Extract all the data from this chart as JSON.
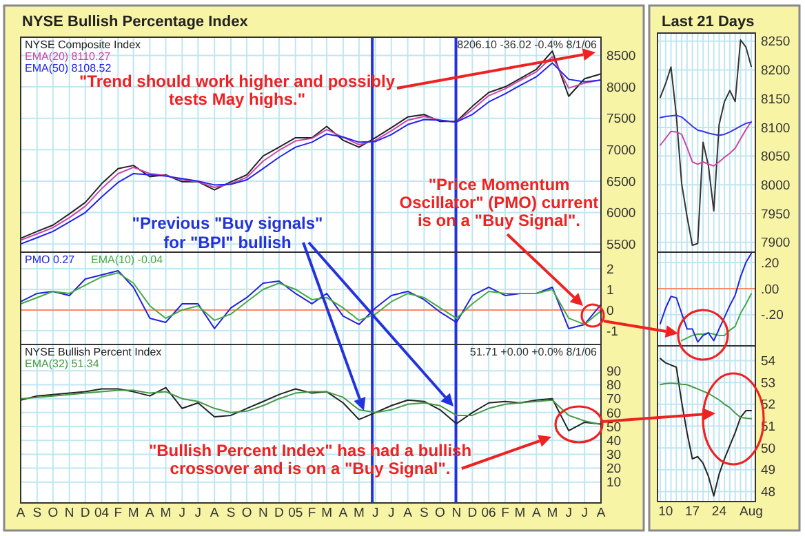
{
  "chart_data": [
    {
      "type": "line",
      "title": "NYSE Bullish Percentage Index",
      "x": [
        "2003-08",
        "2003-09",
        "2003-10",
        "2003-11",
        "2003-12",
        "2004-01",
        "2004-02",
        "2004-03",
        "2004-04",
        "2004-05",
        "2004-06",
        "2004-07",
        "2004-08",
        "2004-09",
        "2004-10",
        "2004-11",
        "2004-12",
        "2005-01",
        "2005-02",
        "2005-03",
        "2005-04",
        "2005-05",
        "2005-06",
        "2005-07",
        "2005-08",
        "2005-09",
        "2005-10",
        "2005-11",
        "2005-12",
        "2006-01",
        "2006-02",
        "2006-03",
        "2006-04",
        "2006-05",
        "2006-06",
        "2006-07",
        "2006-08"
      ],
      "series": [
        {
          "name": "NYSE Composite Index",
          "color": "#222222",
          "values": [
            5590,
            5700,
            5800,
            5980,
            6160,
            6460,
            6700,
            6750,
            6570,
            6600,
            6490,
            6490,
            6360,
            6490,
            6600,
            6900,
            7040,
            7190,
            7190,
            7370,
            7150,
            7040,
            7190,
            7350,
            7520,
            7560,
            7450,
            7450,
            7690,
            7910,
            8000,
            8130,
            8280,
            8570,
            7850,
            8130,
            8206
          ]
        },
        {
          "name": "EMA(20) 8110.27",
          "color": "#cc44aa",
          "values": [
            5560,
            5660,
            5760,
            5920,
            6100,
            6380,
            6620,
            6720,
            6620,
            6590,
            6520,
            6490,
            6400,
            6460,
            6560,
            6820,
            6990,
            7140,
            7180,
            7320,
            7200,
            7080,
            7150,
            7300,
            7470,
            7530,
            7470,
            7440,
            7640,
            7860,
            7970,
            8100,
            8240,
            8480,
            7980,
            8060,
            8110
          ]
        },
        {
          "name": "EMA(50) 8108.52",
          "color": "#2222ee",
          "values": [
            5500,
            5600,
            5700,
            5850,
            6000,
            6250,
            6480,
            6620,
            6600,
            6580,
            6540,
            6500,
            6440,
            6450,
            6520,
            6700,
            6880,
            7040,
            7120,
            7250,
            7200,
            7120,
            7130,
            7240,
            7400,
            7480,
            7470,
            7440,
            7560,
            7760,
            7890,
            8020,
            8160,
            8380,
            8120,
            8080,
            8109
          ]
        }
      ],
      "xlim": [
        "2003-08",
        "2006-08"
      ],
      "xticks": [
        {
          "value": "2003-08",
          "label": null
        },
        {
          "value": "2003-09",
          "label": null
        },
        {
          "value": "2003-10",
          "label": null
        },
        {
          "value": "2003-11",
          "label": null
        },
        {
          "value": "2003-12",
          "label": null
        },
        {
          "value": "2004-01",
          "label": null
        },
        {
          "value": "2004-02",
          "label": null
        },
        {
          "value": "2004-03",
          "label": null
        },
        {
          "value": "2004-04",
          "label": null
        },
        {
          "value": "2004-05",
          "label": null
        },
        {
          "value": "2004-06",
          "label": null
        },
        {
          "value": "2004-07",
          "label": null
        },
        {
          "value": "2004-08",
          "label": null
        },
        {
          "value": "2004-09",
          "label": null
        },
        {
          "value": "2004-10",
          "label": null
        },
        {
          "value": "2004-11",
          "label": null
        },
        {
          "value": "2004-12",
          "label": null
        },
        {
          "value": "2005-01",
          "label": null
        },
        {
          "value": "2005-02",
          "label": null
        },
        {
          "value": "2005-03",
          "label": null
        },
        {
          "value": "2005-04",
          "label": null
        },
        {
          "value": "2005-05",
          "label": null
        },
        {
          "value": "2005-06",
          "label": null
        },
        {
          "value": "2005-07",
          "label": null
        },
        {
          "value": "2005-08",
          "label": null
        },
        {
          "value": "2005-09",
          "label": null
        },
        {
          "value": "2005-10",
          "label": null
        },
        {
          "value": "2005-11",
          "label": null
        },
        {
          "value": "2005-12",
          "label": null
        },
        {
          "value": "2006-01",
          "label": null
        },
        {
          "value": "2006-02",
          "label": null
        },
        {
          "value": "2006-03",
          "label": null
        },
        {
          "value": "2006-04",
          "label": null
        },
        {
          "value": "2006-05",
          "label": null
        },
        {
          "value": "2006-06",
          "label": null
        },
        {
          "value": "2006-07",
          "label": null
        },
        {
          "value": "2006-08",
          "label": null
        }
      ],
      "ylim": [
        5370,
        8790
      ],
      "yticks": [
        5500,
        6000,
        6500,
        7000,
        7500,
        8000,
        8500
      ],
      "grid": true,
      "legend": "top left",
      "tick_labels": "y",
      "ref_lines": [
        {
          "axis": "x",
          "value": "2005-05-26",
          "color": "#2233dd"
        },
        {
          "axis": "x",
          "value": "2005-10-31",
          "color": "#2233dd"
        }
      ],
      "annotations": [
        "8206.10  -36.02  -0.4%  8/1/06",
        "\"Trend should work higher and possibly\ntests May highs.\"",
        "\"Price Momentum\nOscillator\" (PMO) current\nis on a \"Buy Signal\".",
        "\"Previous \"Buy signals\"\nfor \"BPI\" bullish\ncrossovers.\""
      ]
    },
    {
      "type": "line",
      "x": [
        "2003-08",
        "2003-09",
        "2003-10",
        "2003-11",
        "2003-12",
        "2004-01",
        "2004-02",
        "2004-03",
        "2004-04",
        "2004-05",
        "2004-06",
        "2004-07",
        "2004-08",
        "2004-09",
        "2004-10",
        "2004-11",
        "2004-12",
        "2005-01",
        "2005-02",
        "2005-03",
        "2005-04",
        "2005-05",
        "2005-06",
        "2005-07",
        "2005-08",
        "2005-09",
        "2005-10",
        "2005-11",
        "2005-12",
        "2006-01",
        "2006-02",
        "2006-03",
        "2006-04",
        "2006-05",
        "2006-06",
        "2006-07",
        "2006-08"
      ],
      "series": [
        {
          "name": "PMO  0.27",
          "color": "#2222dd",
          "values": [
            0.4,
            0.8,
            0.9,
            0.7,
            1.5,
            1.7,
            1.9,
            1.1,
            -0.4,
            -0.6,
            0.3,
            0.3,
            -0.9,
            0.1,
            0.6,
            1.3,
            1.4,
            0.8,
            0.3,
            0.8,
            -0.3,
            -0.7,
            0.1,
            0.7,
            0.9,
            0.5,
            -0.1,
            -0.6,
            0.7,
            1.1,
            0.7,
            0.8,
            0.8,
            1.1,
            -0.9,
            -0.7,
            0.27
          ]
        },
        {
          "name": "EMA(10)  -0.04",
          "color": "#44aa44",
          "values": [
            0.3,
            0.6,
            0.9,
            0.8,
            1.2,
            1.6,
            1.8,
            1.3,
            0.2,
            -0.4,
            0.0,
            0.2,
            -0.5,
            -0.2,
            0.4,
            1.0,
            1.3,
            1.0,
            0.5,
            0.6,
            0.1,
            -0.5,
            -0.2,
            0.4,
            0.8,
            0.6,
            0.1,
            -0.4,
            0.3,
            0.9,
            0.8,
            0.8,
            0.8,
            1.0,
            -0.4,
            -0.7,
            -0.04
          ]
        }
      ],
      "xlim": [
        "2003-08",
        "2006-08"
      ],
      "xticks": [
        {
          "value": "2003-08",
          "label": null
        },
        {
          "value": "2003-09",
          "label": null
        },
        {
          "value": "2003-10",
          "label": null
        },
        {
          "value": "2003-11",
          "label": null
        },
        {
          "value": "2003-12",
          "label": null
        },
        {
          "value": "2004-01",
          "label": null
        },
        {
          "value": "2004-02",
          "label": null
        },
        {
          "value": "2004-03",
          "label": null
        },
        {
          "value": "2004-04",
          "label": null
        },
        {
          "value": "2004-05",
          "label": null
        },
        {
          "value": "2004-06",
          "label": null
        },
        {
          "value": "2004-07",
          "label": null
        },
        {
          "value": "2004-08",
          "label": null
        },
        {
          "value": "2004-09",
          "label": null
        },
        {
          "value": "2004-10",
          "label": null
        },
        {
          "value": "2004-11",
          "label": null
        },
        {
          "value": "2004-12",
          "label": null
        },
        {
          "value": "2005-01",
          "label": null
        },
        {
          "value": "2005-02",
          "label": null
        },
        {
          "value": "2005-03",
          "label": null
        },
        {
          "value": "2005-04",
          "label": null
        },
        {
          "value": "2005-05",
          "label": null
        },
        {
          "value": "2005-06",
          "label": null
        },
        {
          "value": "2005-07",
          "label": null
        },
        {
          "value": "2005-08",
          "label": null
        },
        {
          "value": "2005-09",
          "label": null
        },
        {
          "value": "2005-10",
          "label": null
        },
        {
          "value": "2005-11",
          "label": null
        },
        {
          "value": "2005-12",
          "label": null
        },
        {
          "value": "2006-01",
          "label": null
        },
        {
          "value": "2006-02",
          "label": null
        },
        {
          "value": "2006-03",
          "label": null
        },
        {
          "value": "2006-04",
          "label": null
        },
        {
          "value": "2006-05",
          "label": null
        },
        {
          "value": "2006-06",
          "label": null
        },
        {
          "value": "2006-07",
          "label": null
        },
        {
          "value": "2006-08",
          "label": null
        }
      ],
      "ylim": [
        -1.67,
        2.8
      ],
      "yticks": [
        -1,
        0,
        1,
        2
      ],
      "grid": true,
      "legend": "top left",
      "tick_labels": "y",
      "ref_lines": [
        {
          "axis": "y",
          "value": 0,
          "color": "#ff8866"
        },
        {
          "axis": "x",
          "value": "2005-05-26",
          "color": "#2233dd"
        },
        {
          "axis": "x",
          "value": "2005-10-31",
          "color": "#2233dd"
        }
      ]
    },
    {
      "type": "line",
      "x": [
        "2003-08",
        "2003-09",
        "2003-10",
        "2003-11",
        "2003-12",
        "2004-01",
        "2004-02",
        "2004-03",
        "2004-04",
        "2004-05",
        "2004-06",
        "2004-07",
        "2004-08",
        "2004-09",
        "2004-10",
        "2004-11",
        "2004-12",
        "2005-01",
        "2005-02",
        "2005-03",
        "2005-04",
        "2005-05",
        "2005-06",
        "2005-07",
        "2005-08",
        "2005-09",
        "2005-10",
        "2005-11",
        "2005-12",
        "2006-01",
        "2006-02",
        "2006-03",
        "2006-04",
        "2006-05",
        "2006-06",
        "2006-07",
        "2006-08"
      ],
      "series": [
        {
          "name": "NYSE Bullish Percent Index",
          "color": "#222222",
          "values": [
            69,
            72,
            73,
            74,
            75,
            77,
            77,
            75,
            72,
            78,
            63,
            67,
            57,
            58,
            63,
            68,
            73,
            77,
            74,
            75,
            67,
            55,
            60,
            65,
            69,
            68,
            62,
            52,
            60,
            67,
            68,
            67,
            69,
            70,
            47,
            53,
            51.71
          ]
        },
        {
          "name": "EMA(32) 51.34",
          "color": "#449944",
          "values": [
            70,
            71,
            72,
            73,
            74,
            75,
            76,
            76,
            74,
            75,
            70,
            68,
            63,
            60,
            61,
            65,
            70,
            74,
            75,
            75,
            71,
            62,
            60,
            62,
            66,
            67,
            65,
            58,
            58,
            63,
            66,
            67,
            68,
            69,
            58,
            54,
            51.34
          ]
        }
      ],
      "xlim": [
        "2003-08",
        "2006-08"
      ],
      "xticks": [
        {
          "value": "2003-08",
          "label": "A"
        },
        {
          "value": "2003-09",
          "label": "S"
        },
        {
          "value": "2003-10",
          "label": "O"
        },
        {
          "value": "2003-11",
          "label": "N"
        },
        {
          "value": "2003-12",
          "label": "D"
        },
        {
          "value": "2004-01",
          "label": "04"
        },
        {
          "value": "2004-02",
          "label": "F"
        },
        {
          "value": "2004-03",
          "label": "M"
        },
        {
          "value": "2004-04",
          "label": "A"
        },
        {
          "value": "2004-05",
          "label": "M"
        },
        {
          "value": "2004-06",
          "label": "J"
        },
        {
          "value": "2004-07",
          "label": "J"
        },
        {
          "value": "2004-08",
          "label": "A"
        },
        {
          "value": "2004-09",
          "label": "S"
        },
        {
          "value": "2004-10",
          "label": "O"
        },
        {
          "value": "2004-11",
          "label": "N"
        },
        {
          "value": "2004-12",
          "label": "D"
        },
        {
          "value": "2005-01",
          "label": "05"
        },
        {
          "value": "2005-02",
          "label": "F"
        },
        {
          "value": "2005-03",
          "label": "M"
        },
        {
          "value": "2005-04",
          "label": "A"
        },
        {
          "value": "2005-05",
          "label": "M"
        },
        {
          "value": "2005-06",
          "label": "J"
        },
        {
          "value": "2005-07",
          "label": "J"
        },
        {
          "value": "2005-08",
          "label": "A"
        },
        {
          "value": "2005-09",
          "label": "S"
        },
        {
          "value": "2005-10",
          "label": "O"
        },
        {
          "value": "2005-11",
          "label": "N"
        },
        {
          "value": "2005-12",
          "label": "D"
        },
        {
          "value": "2006-01",
          "label": "06"
        },
        {
          "value": "2006-02",
          "label": "F"
        },
        {
          "value": "2006-03",
          "label": "M"
        },
        {
          "value": "2006-04",
          "label": "A"
        },
        {
          "value": "2006-05",
          "label": "M"
        },
        {
          "value": "2006-06",
          "label": "J"
        },
        {
          "value": "2006-07",
          "label": "J"
        },
        {
          "value": "2006-08",
          "label": "A"
        }
      ],
      "ylim": [
        -5,
        109
      ],
      "yticks": [
        10,
        20,
        30,
        40,
        50,
        60,
        70,
        80,
        90
      ],
      "grid": true,
      "legend": "top left",
      "ref_lines": [
        {
          "axis": "x",
          "value": "2005-05-26",
          "color": "#2233dd"
        },
        {
          "axis": "x",
          "value": "2005-10-31",
          "color": "#2233dd"
        }
      ],
      "annotations": [
        "51.71  +0.00  +0.0%  8/1/06",
        "\"Bullish Percent Index\" has had a bullish\ncrossover and is on a \"Buy Signal\"."
      ]
    },
    {
      "type": "line",
      "title": "Last 21 Days",
      "categories": [
        null,
        null,
        null,
        null,
        null,
        null,
        null,
        null,
        null,
        null,
        null,
        null,
        null,
        null,
        null,
        null,
        null,
        null
      ],
      "series": [
        {
          "color": "#333333",
          "values": [
            8152,
            8176,
            8205,
            8121,
            8002,
            7945,
            7895,
            7898,
            8074,
            8033,
            7955,
            8105,
            8145,
            8164,
            8145,
            8252,
            8240,
            8206
          ]
        },
        {
          "color": "#cc44aa",
          "values": [
            8069,
            8081,
            8093,
            8092,
            8088,
            8065,
            8040,
            8036,
            8040,
            8036,
            8033,
            8040,
            8048,
            8055,
            8064,
            8080,
            8096,
            8110
          ]
        },
        {
          "color": "#3333ee",
          "values": [
            8117,
            8119,
            8120,
            8121,
            8118,
            8110,
            8102,
            8095,
            8093,
            8090,
            8088,
            8086,
            8088,
            8092,
            8097,
            8102,
            8107,
            8109
          ]
        }
      ],
      "ylim": [
        7883,
        8264
      ],
      "yticks": [
        7900,
        7950,
        8000,
        8050,
        8100,
        8150,
        8200,
        8250
      ],
      "grid": true,
      "tick_labels": "y"
    },
    {
      "type": "line",
      "categories": [
        null,
        null,
        null,
        null,
        null,
        null,
        null,
        null,
        null,
        null,
        null,
        null,
        null,
        null,
        null,
        null,
        null,
        null
      ],
      "series": [
        {
          "color": "#44aa44",
          "values": [
            null,
            null,
            null,
            null,
            -0.4,
            -0.38,
            -0.36,
            -0.35,
            -0.35,
            -0.34,
            -0.35,
            -0.36,
            -0.36,
            -0.32,
            -0.29,
            -0.19,
            -0.12,
            -0.04
          ]
        },
        {
          "color": "#2222dd",
          "values": [
            -0.27,
            -0.15,
            -0.06,
            -0.07,
            -0.19,
            -0.31,
            -0.31,
            -0.41,
            -0.36,
            -0.34,
            -0.4,
            -0.31,
            -0.22,
            -0.13,
            -0.05,
            0.09,
            0.2,
            0.27
          ]
        }
      ],
      "ylim": [
        -0.44,
        0.28
      ],
      "yticks": [
        {
          "value": 0.2,
          "label": ".20"
        },
        {
          "value": 0,
          "label": ".00"
        },
        {
          "value": -0.2,
          "label": "-.20"
        }
      ],
      "grid": true,
      "tick_labels": "y",
      "ref_lines": [
        {
          "axis": "y",
          "value": 0,
          "color": "#ff8866"
        }
      ]
    },
    {
      "type": "line",
      "categories": [
        null,
        "10",
        null,
        null,
        null,
        null,
        "17",
        null,
        null,
        null,
        null,
        "24",
        null,
        null,
        null,
        null,
        null,
        "Aug"
      ],
      "series": [
        {
          "color": "#222222",
          "values": [
            54.1,
            53.9,
            53.8,
            53.7,
            52.1,
            50.7,
            49.5,
            49.6,
            49.3,
            48.7,
            47.8,
            48.8,
            49.5,
            50.1,
            50.7,
            51.4,
            51.71,
            51.71
          ]
        },
        {
          "color": "#449944",
          "values": [
            52.9,
            52.95,
            52.97,
            52.95,
            52.92,
            52.9,
            52.8,
            52.7,
            52.6,
            52.5,
            52.35,
            52.2,
            52.0,
            51.85,
            51.6,
            51.4,
            51.36,
            51.34
          ]
        }
      ],
      "ylim": [
        47.54,
        54.68
      ],
      "yticks": [
        48,
        49,
        50,
        51,
        52,
        53,
        54
      ],
      "grid": true
    }
  ]
}
